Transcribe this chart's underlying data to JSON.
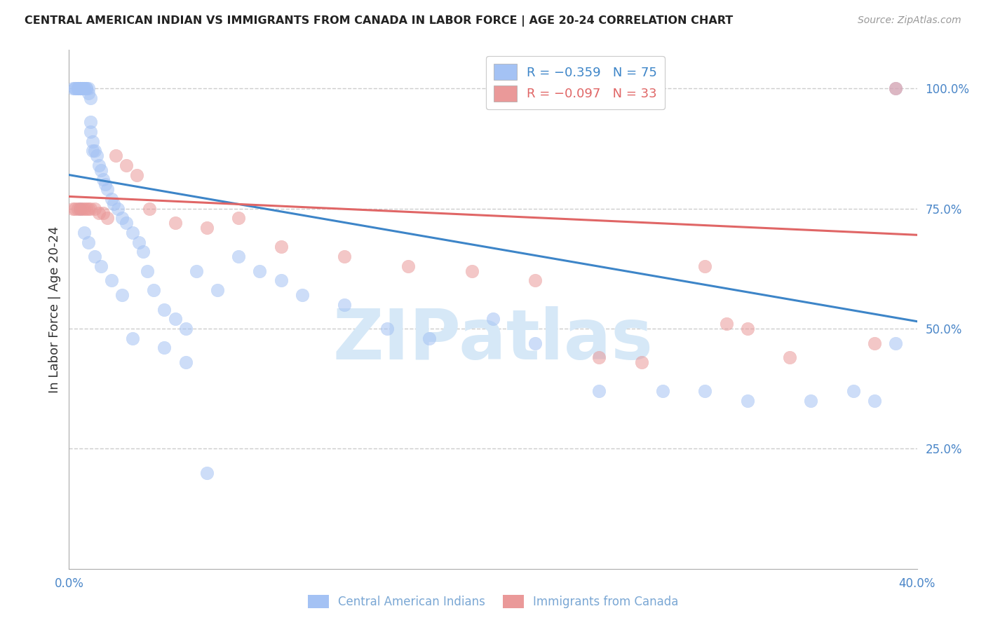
{
  "title": "CENTRAL AMERICAN INDIAN VS IMMIGRANTS FROM CANADA IN LABOR FORCE | AGE 20-24 CORRELATION CHART",
  "source": "Source: ZipAtlas.com",
  "ylabel": "In Labor Force | Age 20-24",
  "xlim": [
    0.0,
    0.4
  ],
  "ylim": [
    0.0,
    1.08
  ],
  "xtick_positions": [
    0.0,
    0.1,
    0.2,
    0.3,
    0.4
  ],
  "xticklabels": [
    "0.0%",
    "",
    "",
    "",
    "40.0%"
  ],
  "yticks_right": [
    0.25,
    0.5,
    0.75,
    1.0
  ],
  "ytick_labels_right": [
    "25.0%",
    "50.0%",
    "75.0%",
    "100.0%"
  ],
  "grid_color": "#cccccc",
  "background_color": "#ffffff",
  "blue_color": "#a4c2f4",
  "pink_color": "#ea9999",
  "blue_line_color": "#3d85c8",
  "pink_line_color": "#e06666",
  "legend_blue_label": "R = −0.359   N = 75",
  "legend_pink_label": "R = −0.097   N = 33",
  "legend_blue_text_color": "#3d85c8",
  "legend_pink_text_color": "#e06666",
  "watermark": "ZIPatlas",
  "watermark_color": "#d6e8f7",
  "series_blue_label": "Central American Indians",
  "series_pink_label": "Immigrants from Canada",
  "blue_line_x0": 0.0,
  "blue_line_y0": 0.82,
  "blue_line_x1": 0.4,
  "blue_line_y1": 0.515,
  "pink_line_x0": 0.0,
  "pink_line_y0": 0.775,
  "pink_line_x1": 0.4,
  "pink_line_y1": 0.695,
  "blue_x": [
    0.002,
    0.003,
    0.003,
    0.004,
    0.004,
    0.004,
    0.005,
    0.005,
    0.005,
    0.005,
    0.005,
    0.006,
    0.006,
    0.007,
    0.007,
    0.008,
    0.008,
    0.009,
    0.009,
    0.01,
    0.01,
    0.01,
    0.011,
    0.011,
    0.012,
    0.013,
    0.014,
    0.015,
    0.016,
    0.017,
    0.018,
    0.02,
    0.021,
    0.023,
    0.025,
    0.027,
    0.03,
    0.033,
    0.035,
    0.037,
    0.04,
    0.045,
    0.05,
    0.055,
    0.06,
    0.07,
    0.08,
    0.09,
    0.1,
    0.11,
    0.13,
    0.15,
    0.17,
    0.2,
    0.22,
    0.25,
    0.28,
    0.3,
    0.32,
    0.35,
    0.37,
    0.38,
    0.39,
    0.39,
    0.005,
    0.007,
    0.009,
    0.012,
    0.015,
    0.02,
    0.025,
    0.03,
    0.045,
    0.055,
    0.065
  ],
  "blue_y": [
    1.0,
    1.0,
    1.0,
    1.0,
    1.0,
    1.0,
    1.0,
    1.0,
    1.0,
    1.0,
    1.0,
    1.0,
    1.0,
    1.0,
    1.0,
    1.0,
    1.0,
    1.0,
    0.99,
    0.98,
    0.93,
    0.91,
    0.89,
    0.87,
    0.87,
    0.86,
    0.84,
    0.83,
    0.81,
    0.8,
    0.79,
    0.77,
    0.76,
    0.75,
    0.73,
    0.72,
    0.7,
    0.68,
    0.66,
    0.62,
    0.58,
    0.54,
    0.52,
    0.5,
    0.62,
    0.58,
    0.65,
    0.62,
    0.6,
    0.57,
    0.55,
    0.5,
    0.48,
    0.52,
    0.47,
    0.37,
    0.37,
    0.37,
    0.35,
    0.35,
    0.37,
    0.35,
    0.47,
    1.0,
    0.75,
    0.7,
    0.68,
    0.65,
    0.63,
    0.6,
    0.57,
    0.48,
    0.46,
    0.43,
    0.2
  ],
  "pink_x": [
    0.002,
    0.003,
    0.004,
    0.005,
    0.006,
    0.007,
    0.008,
    0.009,
    0.01,
    0.012,
    0.014,
    0.016,
    0.018,
    0.022,
    0.027,
    0.032,
    0.038,
    0.05,
    0.065,
    0.08,
    0.1,
    0.13,
    0.16,
    0.19,
    0.22,
    0.25,
    0.27,
    0.3,
    0.31,
    0.32,
    0.34,
    0.38,
    0.39
  ],
  "pink_y": [
    0.75,
    0.75,
    0.75,
    0.75,
    0.75,
    0.75,
    0.75,
    0.75,
    0.75,
    0.75,
    0.74,
    0.74,
    0.73,
    0.86,
    0.84,
    0.82,
    0.75,
    0.72,
    0.71,
    0.73,
    0.67,
    0.65,
    0.63,
    0.62,
    0.6,
    0.44,
    0.43,
    0.63,
    0.51,
    0.5,
    0.44,
    0.47,
    1.0
  ],
  "title_fontsize": 11.5,
  "source_fontsize": 10,
  "tick_fontsize": 12,
  "ylabel_fontsize": 13,
  "legend_fontsize": 13,
  "watermark_fontsize": 72,
  "scatter_size": 180,
  "scatter_alpha": 0.55,
  "line_width": 2.2
}
